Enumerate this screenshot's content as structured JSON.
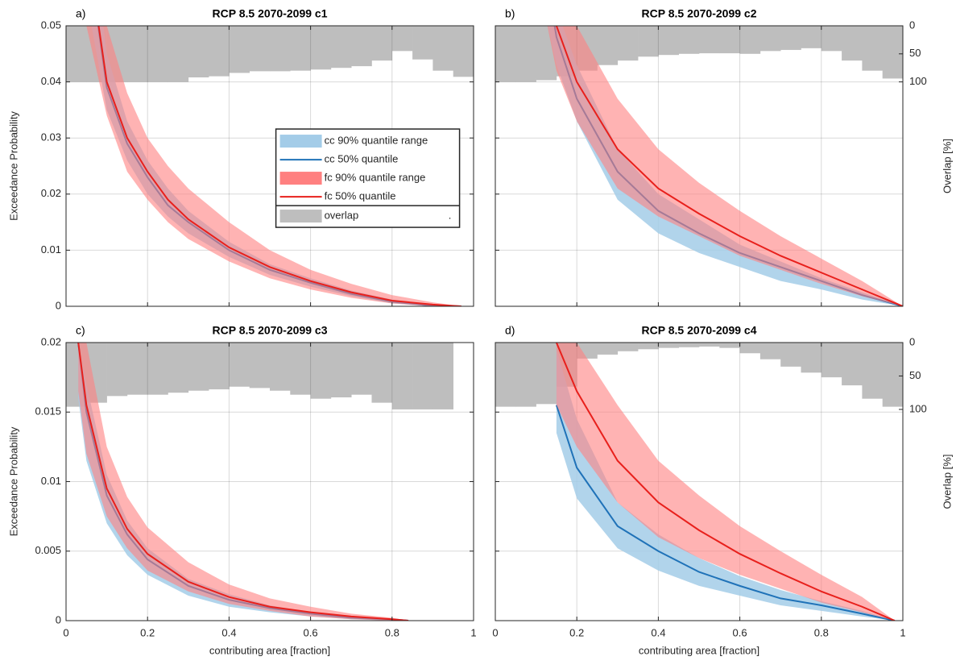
{
  "chart_data": [
    {
      "type": "line",
      "panel": "a)",
      "title": "RCP 8.5 2070-2099 c1",
      "ylabel": "Exceedance Probability",
      "grid": true,
      "xticklabels": false,
      "yticklabels": true,
      "xlim": [
        0,
        1
      ],
      "ylim": [
        0,
        0.05
      ],
      "xticks": [
        0,
        0.2,
        0.4,
        0.6,
        0.8,
        1
      ],
      "yticks": [
        0,
        0.01,
        0.02,
        0.03,
        0.04,
        0.05
      ],
      "y2lim": [
        500,
        0
      ],
      "legend": "center",
      "legend_note": ".",
      "x": [
        0.05,
        0.1,
        0.15,
        0.2,
        0.25,
        0.3,
        0.4,
        0.5,
        0.6,
        0.7,
        0.8,
        0.9,
        0.97
      ],
      "overlap": {
        "name": "overlap",
        "color": "#bebebe",
        "bins": [
          0,
          0.05,
          0.1,
          0.15,
          0.2,
          0.25,
          0.3,
          0.35,
          0.4,
          0.45,
          0.5,
          0.55,
          0.6,
          0.65,
          0.7,
          0.75,
          0.8,
          0.85,
          0.9,
          0.95,
          1
        ],
        "values": [
          100,
          100,
          100,
          100,
          100,
          100,
          92,
          90,
          84,
          81,
          81,
          80,
          78,
          75,
          72,
          62,
          45,
          60,
          80,
          91
        ]
      },
      "series": [
        {
          "name": "cc 90% quantile range",
          "color": "#a3cce8",
          "lower": [
            0.055,
            0.035,
            0.026,
            0.02,
            0.016,
            0.013,
            0.0088,
            0.0056,
            0.0035,
            0.0018,
            0.0005,
            0,
            0
          ],
          "upper": [
            0.075,
            0.045,
            0.033,
            0.026,
            0.021,
            0.017,
            0.0115,
            0.0075,
            0.005,
            0.0028,
            0.0012,
            0.0003,
            0
          ]
        },
        {
          "name": "cc 50% quantile",
          "color": "#1f72b8",
          "values": [
            0.065,
            0.039,
            0.029,
            0.023,
            0.018,
            0.015,
            0.01,
            0.0065,
            0.0042,
            0.0022,
            0.0008,
            0.0001,
            0
          ]
        },
        {
          "name": "fc 90% quantile range",
          "color": "#ff8080",
          "lower": [
            0.05,
            0.034,
            0.024,
            0.019,
            0.015,
            0.012,
            0.008,
            0.005,
            0.003,
            0.0015,
            0.0005,
            0,
            0
          ],
          "upper": [
            0.08,
            0.05,
            0.038,
            0.03,
            0.025,
            0.021,
            0.015,
            0.01,
            0.0065,
            0.004,
            0.002,
            0.0007,
            0
          ]
        },
        {
          "name": "fc 50% quantile",
          "color": "#e8201c",
          "values": [
            0.065,
            0.04,
            0.03,
            0.024,
            0.019,
            0.0155,
            0.0105,
            0.007,
            0.0045,
            0.0025,
            0.001,
            0.0003,
            0
          ]
        }
      ]
    },
    {
      "type": "line",
      "panel": "b)",
      "title": "RCP 8.5 2070-2099 c2",
      "y2label": "Overlap [%]",
      "grid": true,
      "xticklabels": false,
      "yticklabels": false,
      "xlim": [
        0,
        1
      ],
      "ylim": [
        0,
        0.05
      ],
      "xticks": [
        0,
        0.2,
        0.4,
        0.6,
        0.8,
        1
      ],
      "yticks": [
        0,
        0.01,
        0.02,
        0.03,
        0.04,
        0.05
      ],
      "y2lim": [
        500,
        0
      ],
      "y2ticks": [
        0,
        50,
        100
      ],
      "x": [
        0.1,
        0.15,
        0.2,
        0.3,
        0.4,
        0.5,
        0.6,
        0.7,
        0.8,
        0.9,
        1
      ],
      "overlap": {
        "color": "#bebebe",
        "bins": [
          0,
          0.05,
          0.1,
          0.15,
          0.2,
          0.25,
          0.3,
          0.35,
          0.4,
          0.45,
          0.5,
          0.55,
          0.6,
          0.65,
          0.7,
          0.75,
          0.8,
          0.85,
          0.9,
          0.95,
          1
        ],
        "values": [
          100,
          100,
          97,
          90,
          80,
          70,
          62,
          55,
          52,
          50,
          49,
          49,
          50,
          45,
          43,
          40,
          45,
          62,
          80,
          94
        ]
      },
      "series": [
        {
          "color": "#a3cce8",
          "lower": [
            0.06,
            0.043,
            0.033,
            0.019,
            0.013,
            0.0095,
            0.007,
            0.0045,
            0.003,
            0.0012,
            0
          ],
          "upper": [
            0.075,
            0.053,
            0.043,
            0.028,
            0.02,
            0.0155,
            0.011,
            0.008,
            0.005,
            0.0025,
            0
          ]
        },
        {
          "color": "#1f72b8",
          "values": [
            0.07,
            0.048,
            0.037,
            0.024,
            0.017,
            0.013,
            0.0095,
            0.007,
            0.0045,
            0.002,
            0
          ]
        },
        {
          "color": "#ff8080",
          "lower": [
            0.06,
            0.042,
            0.033,
            0.021,
            0.016,
            0.0125,
            0.009,
            0.0065,
            0.004,
            0.0018,
            0
          ],
          "upper": [
            0.09,
            0.065,
            0.05,
            0.037,
            0.028,
            0.022,
            0.017,
            0.0125,
            0.0085,
            0.0045,
            0
          ]
        },
        {
          "color": "#e8201c",
          "values": [
            0.075,
            0.05,
            0.04,
            0.028,
            0.021,
            0.0165,
            0.0125,
            0.009,
            0.006,
            0.003,
            0
          ]
        }
      ]
    },
    {
      "type": "line",
      "panel": "c)",
      "title": "RCP 8.5 2070-2099 c3",
      "ylabel": "Exceedance Probability",
      "xlabel": "contributing area [fraction]",
      "grid": true,
      "xticklabels": true,
      "yticklabels": true,
      "xlim": [
        0,
        1
      ],
      "ylim": [
        0,
        0.02
      ],
      "xticks": [
        0,
        0.2,
        0.4,
        0.6,
        0.8,
        1
      ],
      "yticks": [
        0,
        0.005,
        0.01,
        0.015,
        0.02
      ],
      "y2lim": [
        416,
        0
      ],
      "x": [
        0.03,
        0.05,
        0.1,
        0.15,
        0.2,
        0.3,
        0.4,
        0.5,
        0.6,
        0.7,
        0.8,
        0.84
      ],
      "overlap": {
        "color": "#bebebe",
        "bins": [
          0,
          0.05,
          0.1,
          0.15,
          0.2,
          0.25,
          0.3,
          0.35,
          0.4,
          0.45,
          0.5,
          0.55,
          0.6,
          0.65,
          0.7,
          0.75,
          0.8,
          0.85,
          0.9,
          0.95,
          1
        ],
        "values": [
          96,
          90,
          80,
          78,
          78,
          75,
          72,
          70,
          66,
          68,
          72,
          78,
          84,
          82,
          78,
          90,
          100,
          100,
          100,
          null
        ]
      },
      "series": [
        {
          "color": "#a3cce8",
          "lower": [
            0.016,
            0.0115,
            0.007,
            0.0047,
            0.0033,
            0.0018,
            0.001,
            0.0006,
            0.0003,
            0.0001,
            0,
            0
          ],
          "upper": [
            0.02,
            0.017,
            0.0105,
            0.0072,
            0.0052,
            0.003,
            0.0019,
            0.0011,
            0.0006,
            0.0003,
            0.0001,
            0
          ]
        },
        {
          "color": "#1f72b8",
          "values": [
            0.02,
            0.015,
            0.009,
            0.0062,
            0.0044,
            0.0025,
            0.0015,
            0.0009,
            0.0005,
            0.0002,
            0.0001,
            0
          ]
        },
        {
          "color": "#ff8080",
          "lower": [
            0.0165,
            0.012,
            0.0075,
            0.0052,
            0.0036,
            0.0021,
            0.0012,
            0.0007,
            0.0003,
            0.0001,
            0,
            0
          ],
          "upper": [
            0.024,
            0.02,
            0.0125,
            0.0089,
            0.0067,
            0.0042,
            0.0026,
            0.0016,
            0.001,
            0.0005,
            0.0002,
            0
          ]
        },
        {
          "color": "#e8201c",
          "values": [
            0.02,
            0.0155,
            0.0095,
            0.0066,
            0.0048,
            0.0028,
            0.0017,
            0.001,
            0.0006,
            0.0003,
            0.0001,
            0
          ]
        }
      ]
    },
    {
      "type": "line",
      "panel": "d)",
      "title": "RCP 8.5 2070-2099 c4",
      "xlabel": "contributing area [fraction]",
      "y2label": "Overlap [%]",
      "grid": true,
      "xticklabels": true,
      "yticklabels": false,
      "xlim": [
        0,
        1
      ],
      "ylim": [
        0,
        0.02
      ],
      "xticks": [
        0,
        0.2,
        0.4,
        0.6,
        0.8,
        1
      ],
      "yticks": [
        0,
        0.005,
        0.01,
        0.015,
        0.02
      ],
      "y2lim": [
        416,
        0
      ],
      "y2ticks": [
        0,
        50,
        100
      ],
      "x": [
        0.15,
        0.2,
        0.3,
        0.4,
        0.5,
        0.6,
        0.7,
        0.8,
        0.9,
        0.98
      ],
      "overlap": {
        "color": "#bebebe",
        "bins": [
          0,
          0.05,
          0.1,
          0.15,
          0.2,
          0.25,
          0.3,
          0.35,
          0.4,
          0.45,
          0.5,
          0.55,
          0.6,
          0.65,
          0.7,
          0.75,
          0.8,
          0.85,
          0.9,
          0.95,
          1
        ],
        "values": [
          96,
          96,
          92,
          66,
          24,
          18,
          13,
          10,
          8,
          7,
          6,
          8,
          16,
          25,
          36,
          45,
          52,
          64,
          84,
          96
        ]
      },
      "series": [
        {
          "color": "#a3cce8",
          "lower": [
            0.0135,
            0.0088,
            0.0052,
            0.0036,
            0.0025,
            0.0018,
            0.0011,
            0.0007,
            0.0003,
            0
          ],
          "upper": [
            0.0195,
            0.0145,
            0.0085,
            0.0062,
            0.0045,
            0.0032,
            0.0022,
            0.0014,
            0.0007,
            0
          ]
        },
        {
          "color": "#1f72b8",
          "values": [
            0.0155,
            0.011,
            0.0068,
            0.005,
            0.0035,
            0.0025,
            0.0016,
            0.0011,
            0.0005,
            0
          ]
        },
        {
          "color": "#ff8080",
          "lower": [
            0.0155,
            0.0125,
            0.0085,
            0.006,
            0.0045,
            0.0033,
            0.0023,
            0.0013,
            0.0006,
            0
          ],
          "upper": [
            0.024,
            0.02,
            0.0155,
            0.0115,
            0.009,
            0.0068,
            0.005,
            0.0033,
            0.0017,
            0
          ]
        },
        {
          "color": "#e8201c",
          "values": [
            0.02,
            0.0165,
            0.0115,
            0.0085,
            0.0065,
            0.0048,
            0.0034,
            0.0021,
            0.001,
            0
          ]
        }
      ]
    }
  ]
}
